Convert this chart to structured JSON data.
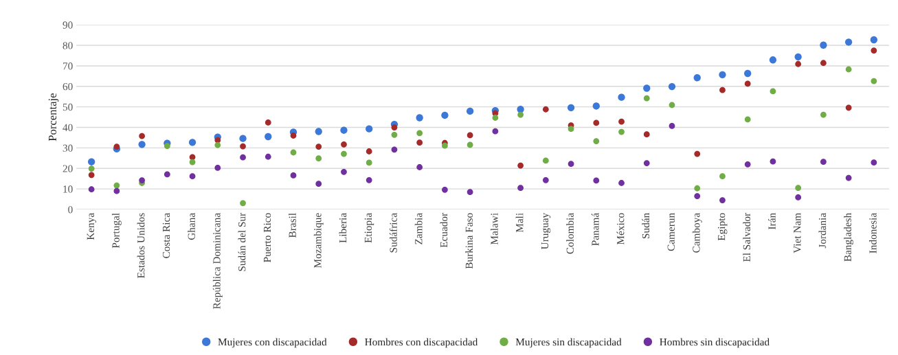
{
  "chart_data": {
    "type": "scatter",
    "ylabel": "Porcentaje",
    "categories": [
      "Kenya",
      "Portugal",
      "Estados Unidos",
      "Costa Rica",
      "Ghana",
      "República Dominicana",
      "Sudán del Sur",
      "Puerto Rico",
      "Brasil",
      "Mozambique",
      "Liberia",
      "Etiopia",
      "Sudáfrica",
      "Zambia",
      "Ecuador",
      "Burkina Faso",
      "Malawi",
      "Mali",
      "Uruguay",
      "Colombia",
      "Panamá",
      "México",
      "Sudán",
      "Camerun",
      "Camboya",
      "Egipto",
      "El Salvador",
      "Irán",
      "Viet Nam",
      "Jordania",
      "Bangladesh",
      "Indonesia"
    ],
    "series": [
      {
        "name": "Mujeres con discapacidad",
        "color": "#3c78d8",
        "values": [
          23.2,
          29.5,
          31.7,
          32.3,
          32.7,
          35.3,
          34.6,
          35.5,
          37.7,
          38.0,
          38.6,
          39.3,
          41.5,
          44.7,
          45.9,
          47.9,
          48.2,
          48.8,
          null,
          49.6,
          50.4,
          54.7,
          59.1,
          59.9,
          64.2,
          65.7,
          66.3,
          72.9,
          74.4,
          80.1,
          81.6,
          82.7
        ]
      },
      {
        "name": "Hombres con discapacidad",
        "color": "#a52a2a",
        "values": [
          16.8,
          30.6,
          35.8,
          null,
          25.5,
          33.8,
          30.8,
          42.4,
          36.0,
          30.6,
          31.7,
          28.3,
          40.0,
          32.6,
          32.4,
          36.2,
          46.9,
          21.4,
          48.8,
          41.0,
          42.2,
          42.8,
          36.6,
          null,
          27.1,
          58.2,
          61.3,
          null,
          70.9,
          71.4,
          49.6,
          77.5
        ]
      },
      {
        "name": "Mujeres sin discapacidad",
        "color": "#70ad47",
        "values": [
          19.9,
          11.7,
          12.9,
          30.9,
          23.1,
          31.4,
          3.1,
          null,
          27.8,
          24.9,
          27.1,
          22.8,
          36.4,
          37.2,
          31.1,
          31.5,
          44.7,
          46.2,
          23.8,
          39.3,
          33.3,
          37.8,
          54.2,
          50.9,
          10.3,
          16.2,
          43.9,
          57.6,
          10.5,
          46.2,
          68.3,
          62.6
        ]
      },
      {
        "name": "Hombres sin discapacidad",
        "color": "#7030a0",
        "values": [
          9.8,
          9.0,
          14.2,
          17.1,
          16.2,
          20.3,
          25.4,
          25.7,
          16.6,
          12.5,
          18.3,
          14.3,
          29.2,
          20.6,
          9.6,
          8.5,
          38.1,
          10.5,
          14.3,
          22.2,
          14.1,
          12.9,
          22.6,
          40.7,
          6.5,
          4.5,
          22.0,
          23.4,
          5.9,
          23.2,
          15.4,
          22.9
        ]
      }
    ],
    "ylim": [
      0,
      90
    ],
    "yticks": [
      0,
      10,
      20,
      30,
      40,
      50,
      60,
      70,
      80,
      90
    ],
    "grid": "y",
    "legend": "bottom",
    "marker": "circle"
  }
}
